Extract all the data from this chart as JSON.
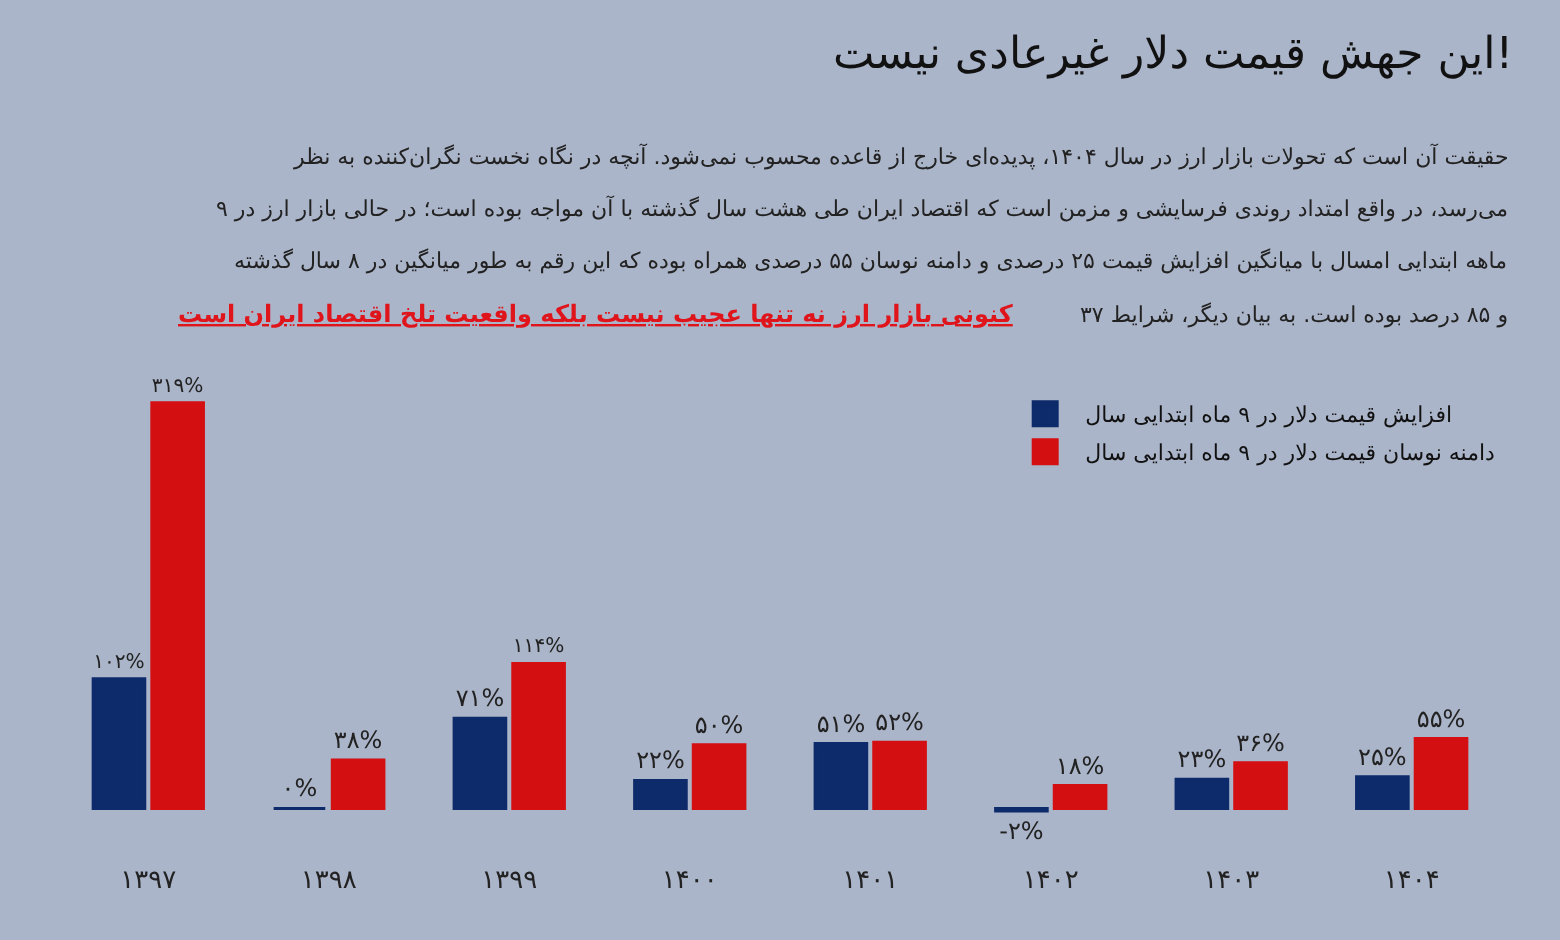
{
  "chart_data": {
    "type": "bar",
    "title": "این جهش قیمت دلار غیرعادی نیست!",
    "annotations": [
      "حقیقت آن است که تحولات بازار ارز در سال ۱۴۰۴، پدیده‌ای خارج از قاعده محسوب نمی‌شود. آنچه در نگاه نخست نگران‌کننده به نظر",
      "می‌رسد، در واقع امتداد روندی فرسایشی و مزمن است که اقتصاد ایران طی هشت سال گذشته با آن مواجه بوده است؛ در حالی بازار ارز در ۹",
      "ماهه ابتدایی امسال با میانگین افزایش قیمت ۲۵ درصدی و دامنه نوسان ۵۵ درصدی همراه بوده که این رقم به طور میانگین در ۸ سال گذشته",
      "۳۷ و ۸۵ درصد بوده است. به بیان دیگر، شرایط",
      "کنونی بازار ارز نه تنها عجیب نیست بلکه واقعیت تلخ اقتصاد ایران است"
    ],
    "categories": [
      "۱۳۹۷",
      "۱۳۹۸",
      "۱۳۹۹",
      "۱۴۰۰",
      "۱۴۰۱",
      "۱۴۰۲",
      "۱۴۰۳",
      "۱۴۰۴"
    ],
    "series": [
      {
        "name": "افزایش قیمت دلار در ۹ ماه ابتدایی سال",
        "color": "#0d2a6b",
        "values": [
          102,
          0,
          71,
          22,
          51,
          -2,
          23,
          25
        ],
        "value_labels": [
          "۱۰۲%",
          "۰%",
          "۷۱%",
          "۲۲%",
          "۵۱%",
          "-۲%",
          "۲۳%",
          "۲۵%"
        ]
      },
      {
        "name": "دامنه نوسان قیمت دلار در ۹ ماه ابتدایی سال",
        "color": "#d40f12",
        "values": [
          319,
          38,
          114,
          50,
          52,
          18,
          36,
          55
        ],
        "value_labels": [
          "۳۱۹%",
          "۳۸%",
          "۱۱۴%",
          "۵۰%",
          "۵۲%",
          "۱۸%",
          "۳۶%",
          "۵۵%"
        ]
      }
    ],
    "legend": "top right",
    "grid": false
  }
}
